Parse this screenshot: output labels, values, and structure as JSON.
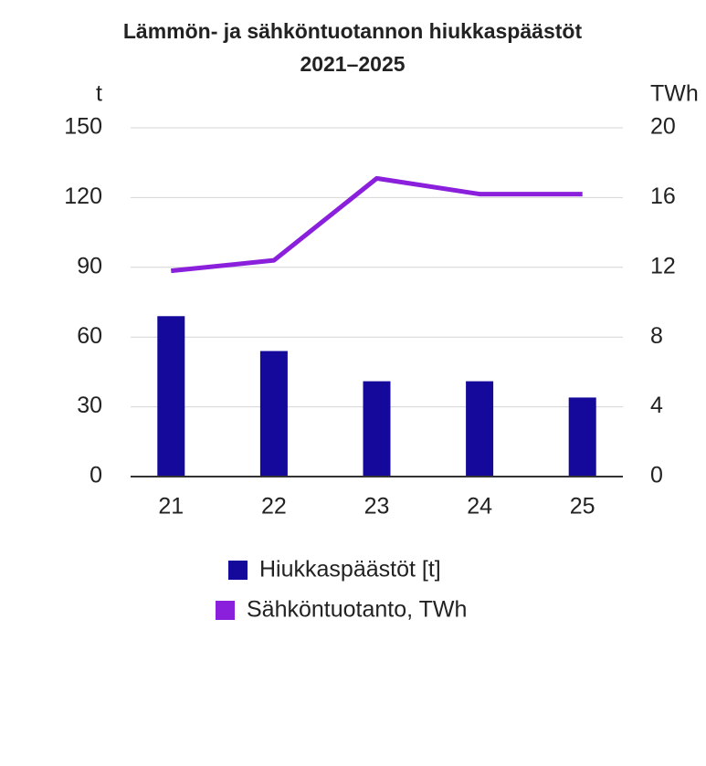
{
  "chart_data": {
    "type": "bar-line",
    "title": [
      "Lämmön- ja sähköntuotannon hiukkaspäästöt",
      "2021–2025"
    ],
    "ylabel": "t",
    "y2label": "TWh",
    "categories": [
      "21",
      "22",
      "23",
      "24",
      "25"
    ],
    "series": [
      {
        "name": "Hiukkaspäästöt [t]",
        "type": "bar",
        "color": "#14099a",
        "values": [
          69,
          54,
          41,
          41,
          34
        ]
      },
      {
        "name": "Sähköntuotanto, TWh",
        "type": "line",
        "axis": "y2",
        "color": "#8a1fdc",
        "values": [
          11.8,
          12.4,
          17.1,
          16.2,
          16.2
        ]
      }
    ],
    "ylim": [
      0,
      150
    ],
    "yticks": [
      0,
      30,
      60,
      90,
      120,
      150
    ],
    "y2lim": [
      0,
      20
    ],
    "y2ticks": [
      0,
      4,
      8,
      12,
      16,
      20
    ],
    "grid": true
  }
}
